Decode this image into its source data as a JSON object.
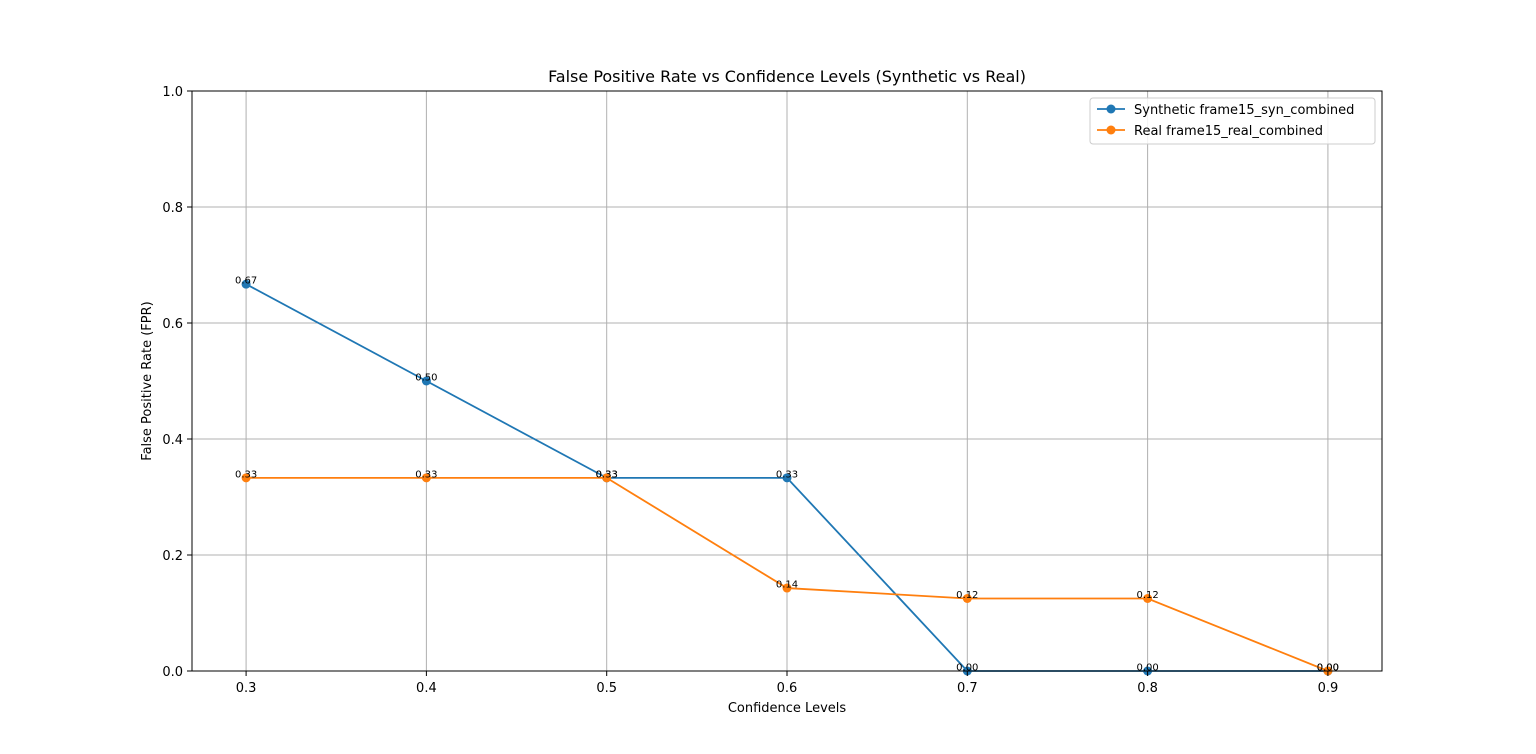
{
  "chart_data": {
    "type": "line",
    "title": "False Positive Rate vs Confidence Levels (Synthetic vs Real)",
    "xlabel": "Confidence Levels",
    "ylabel": "False Positive Rate (FPR)",
    "x": [
      0.3,
      0.4,
      0.5,
      0.6,
      0.7,
      0.8,
      0.9
    ],
    "x_ticks": [
      "0.3",
      "0.4",
      "0.5",
      "0.6",
      "0.7",
      "0.8",
      "0.9"
    ],
    "y_ticks": [
      "0.0",
      "0.2",
      "0.4",
      "0.6",
      "0.8",
      "1.0"
    ],
    "xlim": [
      0.27,
      0.93
    ],
    "ylim": [
      0,
      1
    ],
    "grid": true,
    "legend_position": "top-right",
    "series": [
      {
        "name": "Synthetic frame15_syn_combined",
        "color": "#1f77b4",
        "values": [
          0.667,
          0.5,
          0.333,
          0.333,
          0.0,
          0.0,
          0.0
        ],
        "labels": [
          "0.67",
          "0.50",
          "0.33",
          "0.33",
          "0.00",
          "0.00",
          "0.00"
        ]
      },
      {
        "name": "Real frame15_real_combined",
        "color": "#ff7f0e",
        "values": [
          0.333,
          0.333,
          0.333,
          0.143,
          0.125,
          0.125,
          0.0
        ],
        "labels": [
          "0.33",
          "0.33",
          "0.33",
          "0.14",
          "0.12",
          "0.12",
          "0.00"
        ]
      }
    ]
  }
}
